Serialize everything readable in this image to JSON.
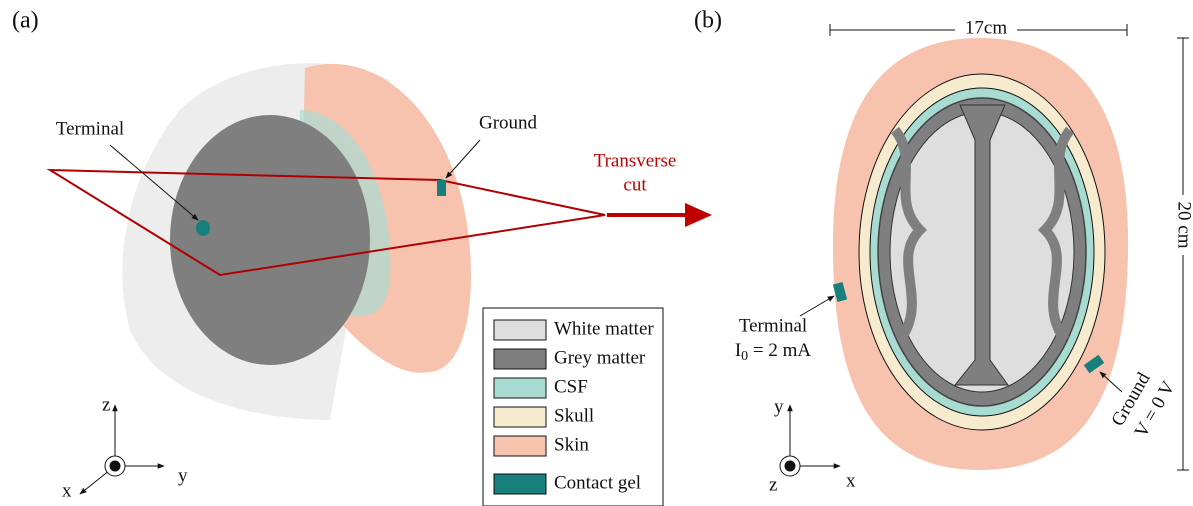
{
  "panel_a": {
    "label": "(a)",
    "terminal": "Terminal",
    "ground": "Ground",
    "cut": [
      "Transverse",
      "cut"
    ],
    "axes": {
      "z": "z",
      "y": "y",
      "x": "x"
    },
    "legend": [
      {
        "name": "White matter",
        "color": "#dedede"
      },
      {
        "name": "Grey matter",
        "color": "#7f7f7f"
      },
      {
        "name": "CSF",
        "color": "#a8dcd3"
      },
      {
        "name": "Skull",
        "color": "#f6ebcf"
      },
      {
        "name": "Skin",
        "color": "#f8c3ae"
      },
      {
        "name": "Contact gel",
        "color": "#17807d"
      }
    ]
  },
  "panel_b": {
    "label": "(b)",
    "width_label": "17cm",
    "height_label": "20 cm",
    "terminal": {
      "label": "Terminal",
      "symbol": "I",
      "subscript": "0",
      "rest": " = 2 mA"
    },
    "ground": {
      "label": "Ground",
      "voltage": "V = 0 V"
    },
    "axes": {
      "y": "y",
      "z": "z",
      "x": "x"
    }
  }
}
